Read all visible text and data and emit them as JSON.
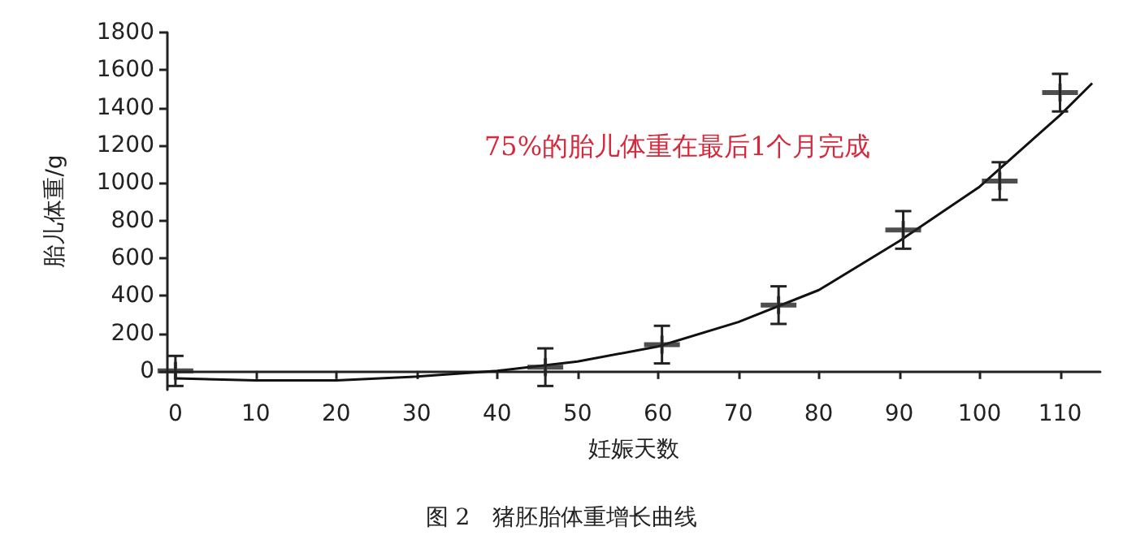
{
  "chart_data": {
    "type": "scatter",
    "title": "图 2　猪胚胎体重增长曲线",
    "xlabel": "妊娠天数",
    "ylabel": "胎儿体重/g",
    "annotations": [
      "75%的胎儿体重在最后1个月完成"
    ],
    "xlim": [
      -1,
      115
    ],
    "xticks": [
      0,
      10,
      20,
      30,
      40,
      50,
      60,
      70,
      80,
      90,
      100,
      110
    ],
    "ylim": [
      -100,
      1800
    ],
    "yticks": [
      0,
      200,
      400,
      600,
      800,
      1000,
      1200,
      1400,
      1600,
      1800
    ],
    "series": [
      {
        "color": "#222222",
        "marker": "cross",
        "x": [
          0,
          46,
          60.5,
          75,
          90.5,
          102.5,
          110
        ],
        "values": [
          0,
          20,
          140,
          350,
          750,
          1010,
          1480
        ],
        "errors": [
          80,
          100,
          100,
          100,
          100,
          100,
          100
        ]
      },
      {
        "type": "line",
        "color": "#111111",
        "line_style": "solid",
        "x": [
          0,
          10,
          20,
          30,
          40,
          50,
          60,
          70,
          80,
          90,
          100,
          110,
          114
        ],
        "values": [
          -40,
          -50,
          -50,
          -30,
          0,
          50,
          130,
          260,
          430,
          690,
          980,
          1360,
          1530
        ]
      }
    ]
  }
}
